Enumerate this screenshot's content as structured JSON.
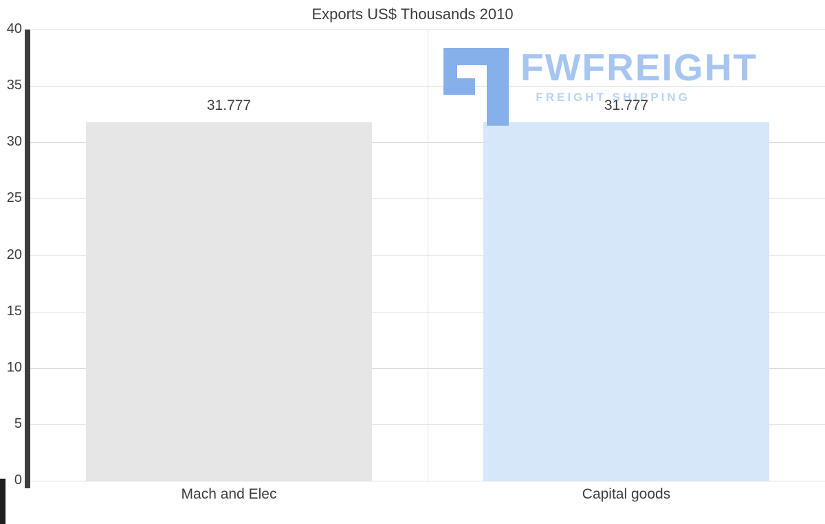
{
  "chart_data": {
    "type": "bar",
    "title": "Exports US$ Thousands 2010",
    "categories": [
      "Mach and Elec",
      "Capital goods"
    ],
    "values": [
      31.777,
      31.777
    ],
    "value_labels": [
      "31.777",
      "31.777"
    ],
    "xlabel": "",
    "ylabel": "",
    "ylim": [
      0,
      40
    ],
    "yticks": [
      0,
      5,
      10,
      15,
      20,
      25,
      30,
      35,
      40
    ],
    "grid": true,
    "legend": "none",
    "bar_colors": [
      "#e6e6e6",
      "#d7e7fa"
    ]
  },
  "watermark": {
    "brand": "FWFREIGHT",
    "tagline": "FREIGHT SHIPPING",
    "logo_icon": "fwfreight-blocks-logo",
    "brand_color": "#a7c5f1",
    "tagline_color": "#b9d3f6",
    "logo_color": "#85b0ea"
  },
  "axis": {
    "line_color": "#3d3d3d",
    "text_color": "#3d3d3d",
    "grid_color": "#dcdcdc"
  }
}
